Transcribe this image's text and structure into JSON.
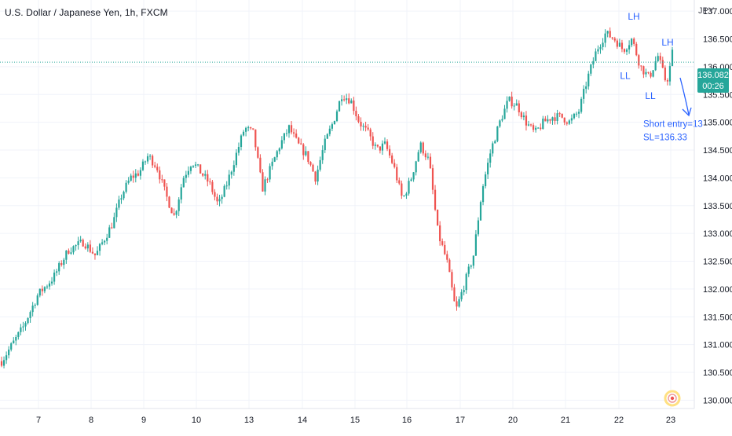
{
  "header": {
    "title": "U.S. Dollar / Japanese Yen, 1h, FXCM",
    "currency": "JPY"
  },
  "price_label": {
    "value": "136.082",
    "countdown": "00:26"
  },
  "colors": {
    "up": "#26a69a",
    "down": "#ef5350",
    "annotation": "#2962ff",
    "grid": "#f0f3fa",
    "axis_text": "#131722",
    "last_price_line": "#26a69a"
  },
  "chart_data": {
    "type": "candlestick",
    "instrument": "U.S. Dollar / Japanese Yen",
    "timeframe": "1h",
    "source": "FXCM",
    "ylim": [
      129.85,
      137.2
    ],
    "y_ticks": [
      "130.000",
      "130.500",
      "131.000",
      "131.500",
      "132.000",
      "132.500",
      "133.000",
      "133.500",
      "134.000",
      "134.500",
      "135.000",
      "135.500",
      "136.000",
      "136.500",
      "137.000"
    ],
    "x_tick_labels": [
      "7",
      "8",
      "9",
      "10",
      "13",
      "14",
      "15",
      "16",
      "17",
      "20",
      "21",
      "22",
      "23"
    ],
    "last_price": 136.082,
    "grid": true,
    "close_path": [
      [
        "7",
        130.7
      ],
      [
        "7",
        131.3
      ],
      [
        "7",
        131.9
      ],
      [
        "7",
        132.2
      ],
      [
        "7",
        132.7
      ],
      [
        "7",
        132.85
      ],
      [
        "8",
        132.6
      ],
      [
        "8",
        132.9
      ],
      [
        "8",
        133.2
      ],
      [
        "8",
        133.7
      ],
      [
        "8",
        134.0
      ],
      [
        "8",
        134.1
      ],
      [
        "9",
        134.4
      ],
      [
        "9",
        134.2
      ],
      [
        "9",
        133.7
      ],
      [
        "9",
        133.3
      ],
      [
        "9",
        134.0
      ],
      [
        "9",
        134.3
      ],
      [
        "10",
        134.1
      ],
      [
        "10",
        133.9
      ],
      [
        "10",
        133.5
      ],
      [
        "10",
        133.9
      ],
      [
        "10",
        134.4
      ],
      [
        "10",
        134.9
      ],
      [
        "13",
        134.8
      ],
      [
        "13",
        133.8
      ],
      [
        "13",
        134.2
      ],
      [
        "13",
        134.6
      ],
      [
        "13",
        134.9
      ],
      [
        "13",
        134.6
      ],
      [
        "14",
        134.4
      ],
      [
        "14",
        134.0
      ],
      [
        "14",
        134.6
      ],
      [
        "14",
        135.0
      ],
      [
        "14",
        135.5
      ],
      [
        "14",
        135.4
      ],
      [
        "15",
        135.0
      ],
      [
        "15",
        134.8
      ],
      [
        "15",
        134.5
      ],
      [
        "15",
        134.6
      ],
      [
        "15",
        134.2
      ],
      [
        "15",
        133.6
      ],
      [
        "16",
        134.0
      ],
      [
        "16",
        134.6
      ],
      [
        "16",
        134.3
      ],
      [
        "16",
        133.0
      ],
      [
        "16",
        132.5
      ],
      [
        "16",
        131.6
      ],
      [
        "17",
        132.1
      ],
      [
        "17",
        132.6
      ],
      [
        "17",
        133.8
      ],
      [
        "17",
        134.5
      ],
      [
        "17",
        135.0
      ],
      [
        "17",
        135.4
      ],
      [
        "20",
        135.3
      ],
      [
        "20",
        135.0
      ],
      [
        "20",
        134.8
      ],
      [
        "20",
        135.0
      ],
      [
        "20",
        135.1
      ],
      [
        "20",
        135.1
      ],
      [
        "21",
        135.0
      ],
      [
        "21",
        135.2
      ],
      [
        "21",
        135.8
      ],
      [
        "21",
        136.3
      ],
      [
        "21",
        136.6
      ],
      [
        "21",
        136.5
      ],
      [
        "22",
        136.3
      ],
      [
        "22",
        136.5
      ],
      [
        "22",
        136.0
      ],
      [
        "22",
        135.8
      ],
      [
        "22",
        136.2
      ],
      [
        "22",
        135.7
      ],
      [
        "23",
        136.1
      ],
      [
        "23",
        136.25
      ],
      [
        "23",
        136.08
      ]
    ],
    "annotations": [
      {
        "text": "LH",
        "x": "22",
        "y": 136.85
      },
      {
        "text": "LH",
        "x": "23",
        "y": 136.38
      },
      {
        "text": "LL",
        "x": "22",
        "y": 135.78
      },
      {
        "text": "LL",
        "x": "22",
        "y": 135.42
      },
      {
        "text": "Short entry=13",
        "x": "23",
        "y": 134.92
      },
      {
        "text": "SL=136.33",
        "x": "23",
        "y": 134.68
      }
    ]
  }
}
